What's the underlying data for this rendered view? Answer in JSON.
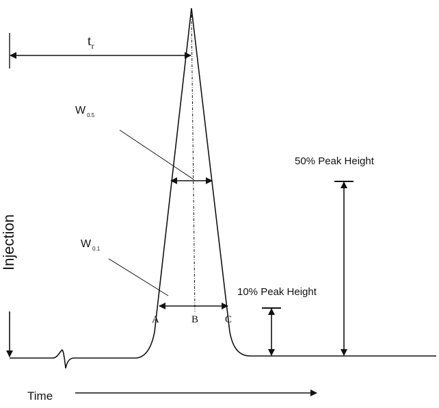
{
  "labels": {
    "tr_main": "t",
    "tr_sub": "r",
    "w05_main": "W",
    "w05_sub": "0.5",
    "w01_main": "W",
    "w01_sub": "0.1",
    "fifty": "50% Peak Height",
    "ten": "10% Peak Height",
    "injection": "Injection",
    "time": "Time",
    "a": "A",
    "b": "B",
    "c": "C"
  }
}
